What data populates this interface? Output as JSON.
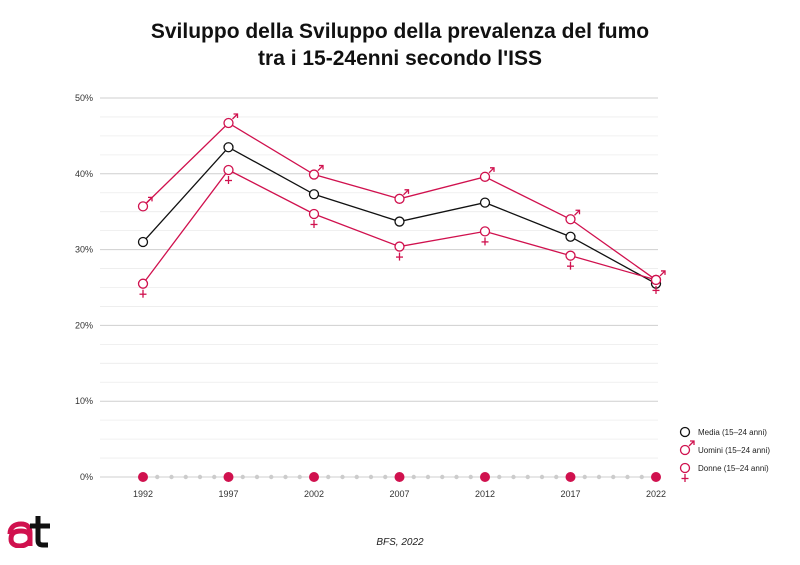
{
  "title_line1": "Sviluppo della Sviluppo della prevalenza del fumo",
  "title_line2": "tra i 15-24enni secondo l'ISS",
  "source": "BFS, 2022",
  "colors": {
    "accent": "#d0114e",
    "mean": "#111111",
    "grid": "#dddddd",
    "dots": "#cccccc"
  },
  "chart_data": {
    "type": "line",
    "x": [
      "1992",
      "1997",
      "2002",
      "2007",
      "2012",
      "2017",
      "2022"
    ],
    "yticks": [
      "0%",
      "10%",
      "20%",
      "30%",
      "40%",
      "50%"
    ],
    "ylim": [
      0,
      50
    ],
    "grid": true,
    "legend_position": "bottom-right",
    "series": [
      {
        "name": "Media (15–24 anni)",
        "symbol": "circle",
        "values": [
          31,
          43.5,
          37.3,
          33.7,
          36.2,
          31.7,
          25.5
        ]
      },
      {
        "name": "Uomini (15–24 anni)",
        "symbol": "male",
        "values": [
          35.7,
          46.7,
          39.9,
          36.7,
          39.6,
          34,
          26
        ]
      },
      {
        "name": "Donne (15–24 anni)",
        "symbol": "female",
        "values": [
          25.5,
          40.5,
          34.7,
          30.4,
          32.4,
          29.2,
          26
        ]
      }
    ]
  }
}
